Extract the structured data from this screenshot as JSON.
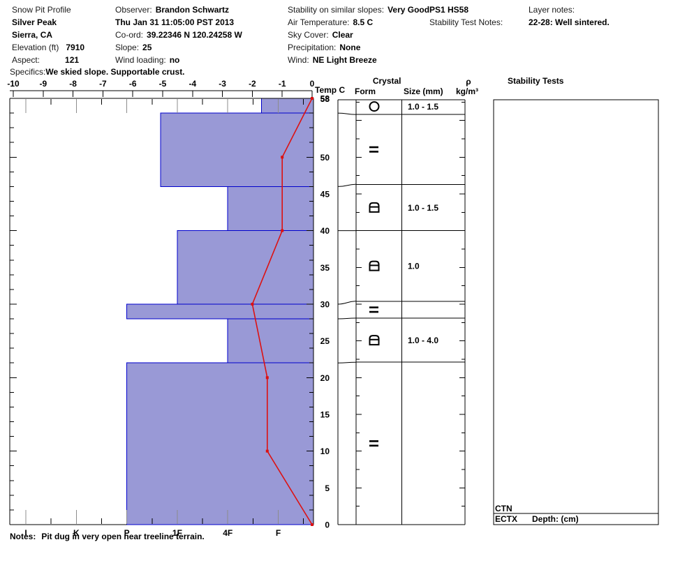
{
  "header": {
    "col1": {
      "title": "Snow Pit Profile",
      "location": "Silver Peak",
      "region": "Sierra, CA",
      "elevation_label": "Elevation (ft)",
      "elevation_value": "7910",
      "aspect_label": "Aspect:",
      "aspect_value": "121",
      "specifics_label": "Specifics:",
      "specifics_value": "We skied slope. Supportable crust."
    },
    "col2": {
      "observer_label": "Observer:",
      "observer_value": "Brandon Schwartz",
      "datetime": "Thu Jan 31 11:05:00 PST 2013",
      "coord_label": "Co-ord:",
      "coord_value": "39.22346 N 120.24258 W",
      "slope_label": "Slope:",
      "slope_value": "25",
      "wind_loading_label": "Wind loading:",
      "wind_loading_value": "no"
    },
    "col3": {
      "stability_label": "Stability on similar slopes:",
      "stability_value": "Very Good",
      "air_temp_label": "Air Temperature:",
      "air_temp_value": "8.5 C",
      "sky_label": "Sky Cover:",
      "sky_value": "Clear",
      "precip_label": "Precipitation:",
      "precip_value": "None",
      "wind_label": "Wind:",
      "wind_value": "NE Light Breeze"
    },
    "col4": {
      "codes": "PS1 HS58",
      "test_notes_label": "Stability Test Notes:"
    },
    "col5": {
      "layer_notes_label": "Layer notes:",
      "layer_notes_value": "22-28: Well sintered."
    }
  },
  "notes": {
    "label": "Notes:",
    "text": "Pit dug in very open near treeline terrain."
  },
  "chart_data": {
    "type": "snow-pit-profile",
    "temp_axis": {
      "label": "Temp C",
      "range": [
        -10,
        0
      ],
      "ticks": [
        -10,
        -9,
        -8,
        -7,
        -6,
        -5,
        -4,
        -3,
        -2,
        -1,
        0
      ]
    },
    "depth_axis": {
      "unit": "cm",
      "range": [
        0,
        58
      ],
      "total_depth_label": "58",
      "labels": [
        58,
        50,
        45,
        40,
        35,
        30,
        25,
        20,
        15,
        10,
        5,
        0
      ]
    },
    "hardness_axis": {
      "categories": [
        "I",
        "K",
        "P",
        "1F",
        "4F",
        "F"
      ]
    },
    "layers": [
      {
        "top_cm": 58,
        "bottom_cm": 56,
        "hardness": "F+"
      },
      {
        "top_cm": 56,
        "bottom_cm": 46,
        "hardness": "1F+"
      },
      {
        "top_cm": 46,
        "bottom_cm": 40,
        "hardness": "4F"
      },
      {
        "top_cm": 40,
        "bottom_cm": 30,
        "hardness": "1F"
      },
      {
        "top_cm": 30,
        "bottom_cm": 28,
        "hardness": "P"
      },
      {
        "top_cm": 28,
        "bottom_cm": 22,
        "hardness": "4F"
      },
      {
        "top_cm": 22,
        "bottom_cm": 0,
        "hardness": "P"
      }
    ],
    "temperature_profile": [
      {
        "depth_cm": 58,
        "temp_c": 0
      },
      {
        "depth_cm": 50,
        "temp_c": -1
      },
      {
        "depth_cm": 40,
        "temp_c": -1
      },
      {
        "depth_cm": 30,
        "temp_c": -2
      },
      {
        "depth_cm": 20,
        "temp_c": -1.5
      },
      {
        "depth_cm": 10,
        "temp_c": -1.5
      },
      {
        "depth_cm": 0,
        "temp_c": 0
      }
    ],
    "crystal_table": {
      "header_line1": "Crystal",
      "header_form": "Form",
      "header_size": "Size (mm)",
      "header_rho": "ρ",
      "header_rho_unit": "kg/m³",
      "rows": [
        {
          "top_cm": 58,
          "bottom_cm": 55.8,
          "form": "melt-forms-circle",
          "size": "1.0 - 1.5"
        },
        {
          "top_cm": 55.8,
          "bottom_cm": 46.3,
          "form": "ice-lens-double-bar",
          "size": ""
        },
        {
          "top_cm": 46.3,
          "bottom_cm": 40,
          "form": "melt-freeze-crust",
          "size": "1.0 - 1.5"
        },
        {
          "top_cm": 40,
          "bottom_cm": 30.4,
          "form": "melt-freeze-crust",
          "size": "1.0"
        },
        {
          "top_cm": 30.4,
          "bottom_cm": 28.1,
          "form": "ice-lens-double-bar",
          "size": ""
        },
        {
          "top_cm": 28.1,
          "bottom_cm": 22.1,
          "form": "melt-freeze-crust",
          "size": "1.0 - 4.0"
        },
        {
          "top_cm": 22.1,
          "bottom_cm": 0,
          "form": "ice-lens-double-bar",
          "size": ""
        }
      ]
    },
    "stability_tests": {
      "title": "Stability Tests",
      "row1": "CTN",
      "row2_test": "ECTX",
      "row2_suffix": "Depth: (cm)"
    },
    "colors": {
      "bar_fill": "#9999d6",
      "bar_border": "#0000cc",
      "temp_line": "#dd1111",
      "major_tick_gray": "#8c8c8c",
      "axis_black": "#000000"
    }
  }
}
